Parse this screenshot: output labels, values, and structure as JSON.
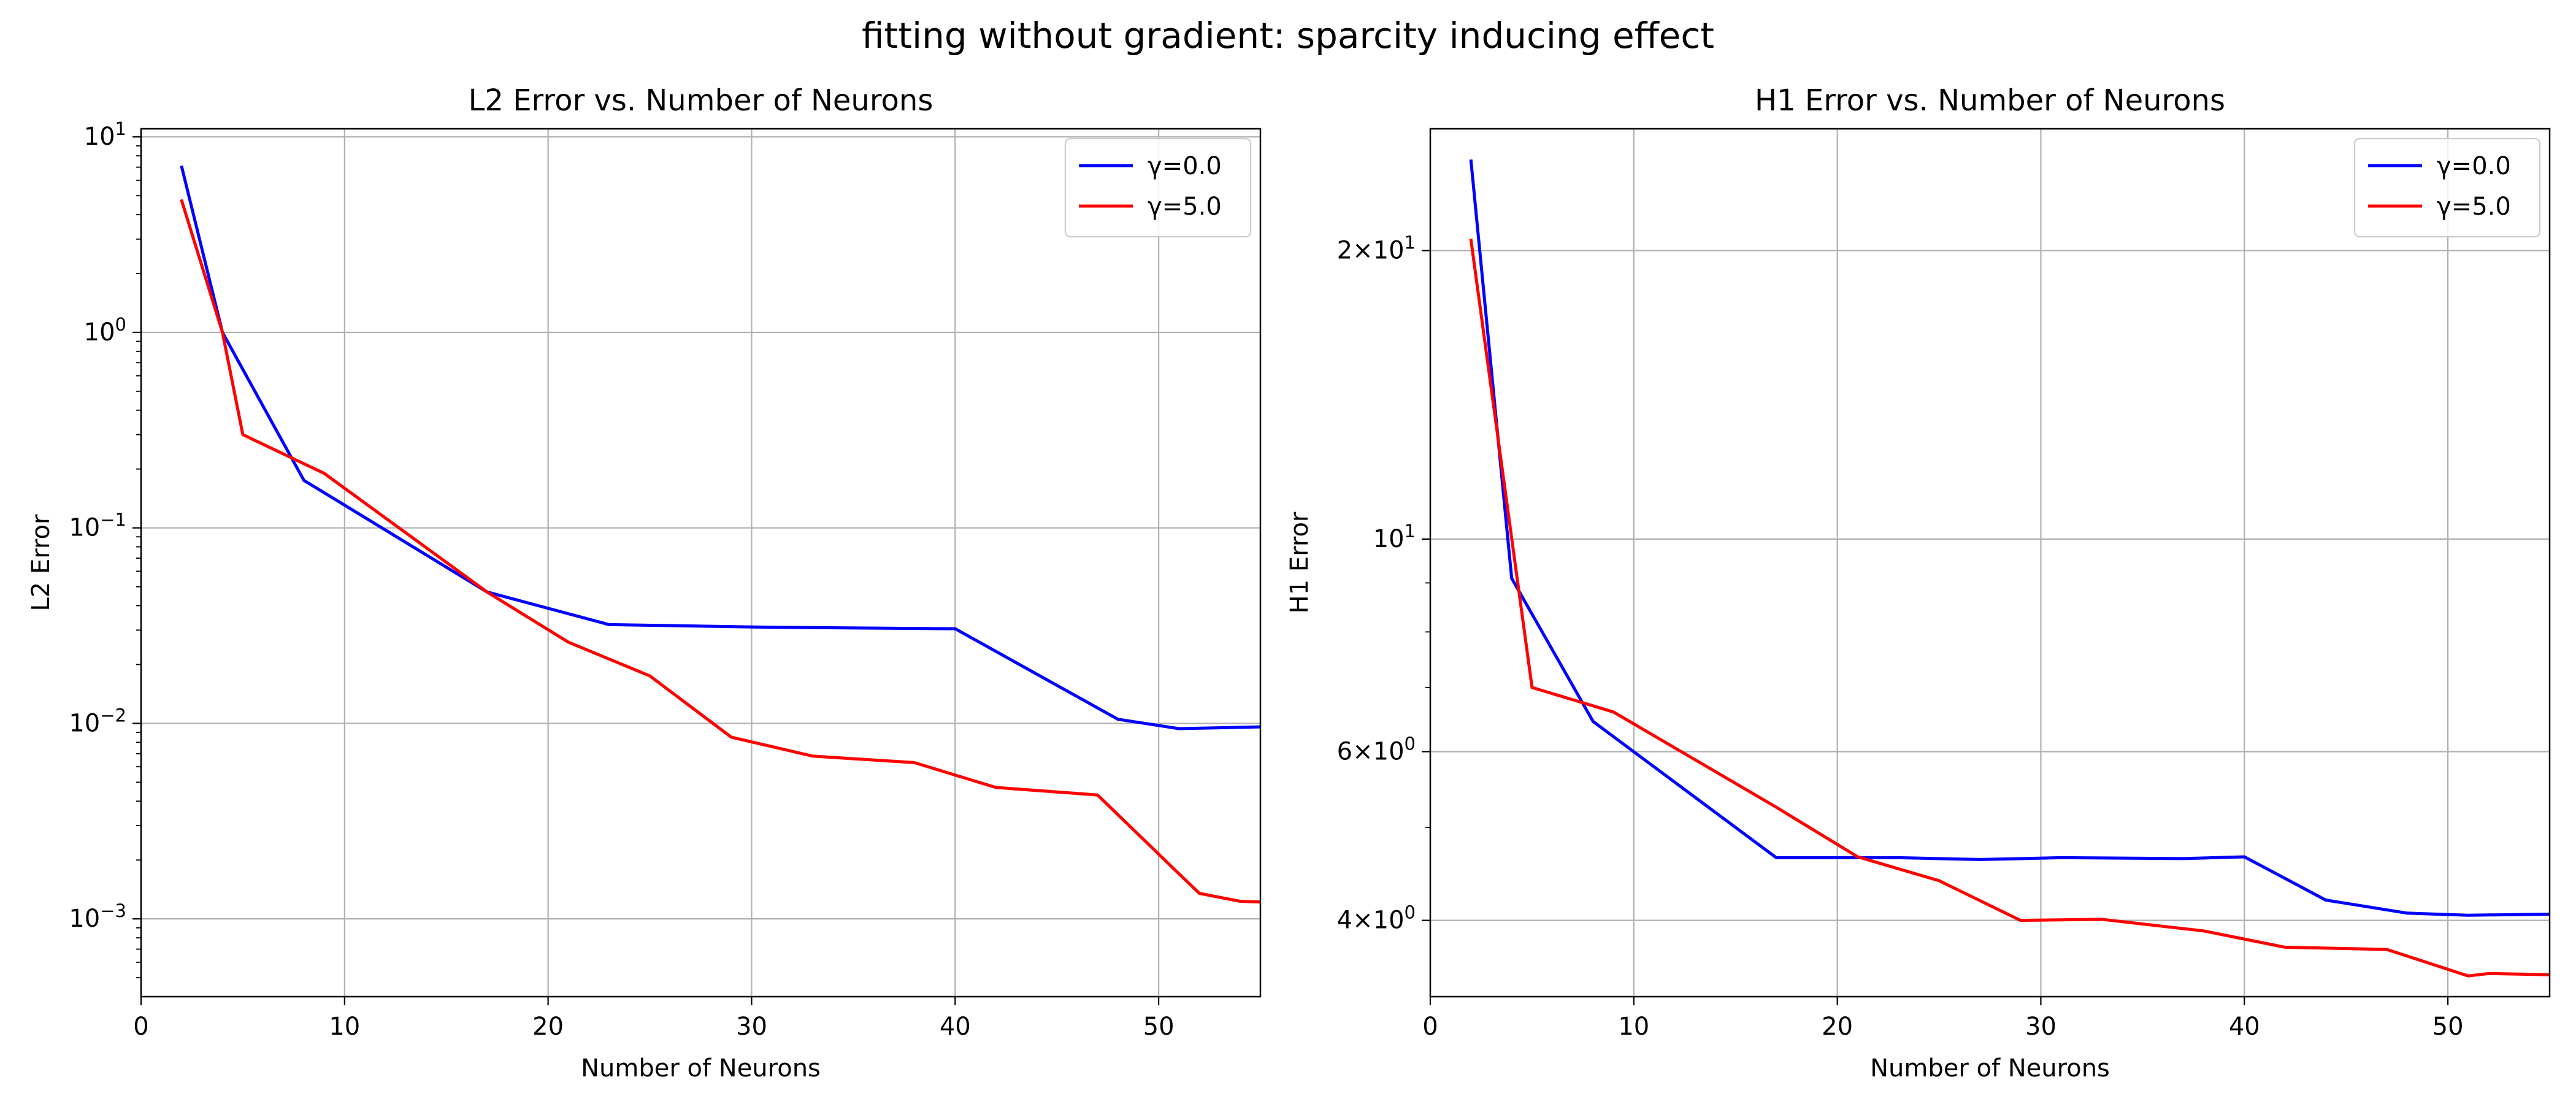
{
  "suptitle": "fitting without gradient: sparcity inducing effect",
  "colors": {
    "blue": "#0000ff",
    "red": "#ff0000",
    "grid": "#b0b0b0"
  },
  "chart_data": [
    {
      "type": "line",
      "title": "L2 Error vs. Number of Neurons",
      "xlabel": "Number of Neurons",
      "ylabel": "L2 Error",
      "xscale": "linear",
      "yscale": "log",
      "xlim": [
        0,
        55
      ],
      "ylim": [
        0.0004,
        11
      ],
      "xticks": [
        0,
        10,
        20,
        30,
        40,
        50
      ],
      "yticks": [
        {
          "value": 0.001,
          "base": "10",
          "exp": "−3"
        },
        {
          "value": 0.01,
          "base": "10",
          "exp": "−2"
        },
        {
          "value": 0.1,
          "base": "10",
          "exp": "−1"
        },
        {
          "value": 1,
          "base": "10",
          "exp": "0"
        },
        {
          "value": 10,
          "base": "10",
          "exp": "1"
        }
      ],
      "grid": true,
      "legend_position": "top-right",
      "series": [
        {
          "name": "γ=0.0",
          "color": "#0000ff",
          "x": [
            2,
            4,
            8,
            17,
            23,
            31,
            40,
            48,
            51,
            55
          ],
          "y": [
            7.0,
            1.0,
            0.175,
            0.047,
            0.032,
            0.031,
            0.0305,
            0.0105,
            0.0094,
            0.0096
          ]
        },
        {
          "name": "γ=5.0",
          "color": "#ff0000",
          "x": [
            2,
            4,
            5,
            9,
            17,
            21,
            25,
            29,
            33,
            38,
            42,
            47,
            51,
            52,
            54,
            55
          ],
          "y": [
            4.7,
            1.0,
            0.3,
            0.19,
            0.047,
            0.026,
            0.0175,
            0.0085,
            0.0068,
            0.0063,
            0.0047,
            0.0043,
            0.0017,
            0.00135,
            0.00123,
            0.00122
          ]
        }
      ]
    },
    {
      "type": "line",
      "title": "H1 Error vs. Number of Neurons",
      "xlabel": "Number of Neurons",
      "ylabel": "H1 Error",
      "xscale": "linear",
      "yscale": "log",
      "xlim": [
        0,
        55
      ],
      "ylim": [
        3.33,
        26.8
      ],
      "xticks": [
        0,
        10,
        20,
        30,
        40,
        50
      ],
      "yticks": [
        {
          "value": 4,
          "base": "4×10",
          "exp": "0"
        },
        {
          "value": 6,
          "base": "6×10",
          "exp": "0"
        },
        {
          "value": 10,
          "base": "10",
          "exp": "1"
        },
        {
          "value": 20,
          "base": "2×10",
          "exp": "1"
        }
      ],
      "grid": true,
      "legend_position": "top-right",
      "series": [
        {
          "name": "γ=0.0",
          "color": "#0000ff",
          "x": [
            2,
            4,
            8,
            17,
            23,
            27,
            31,
            37,
            40,
            44,
            48,
            51,
            55
          ],
          "y": [
            24.8,
            9.1,
            6.45,
            4.65,
            4.65,
            4.63,
            4.65,
            4.64,
            4.66,
            4.2,
            4.07,
            4.05,
            4.06
          ]
        },
        {
          "name": "γ=5.0",
          "color": "#ff0000",
          "x": [
            2,
            5,
            9,
            17,
            21,
            25,
            29,
            33,
            38,
            42,
            47,
            51,
            52,
            55
          ],
          "y": [
            20.5,
            7.0,
            6.6,
            5.25,
            4.66,
            4.4,
            4.0,
            4.01,
            3.9,
            3.75,
            3.73,
            3.5,
            3.52,
            3.51
          ]
        }
      ]
    }
  ]
}
